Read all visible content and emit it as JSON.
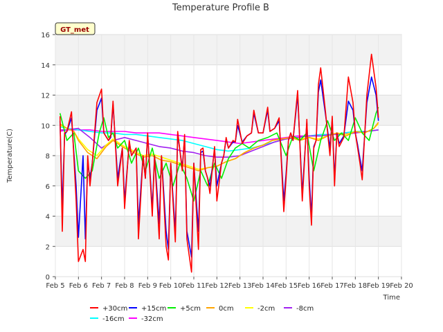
{
  "chart_data": {
    "type": "line",
    "title": "Temperature Profile B",
    "xlabel": "Time",
    "ylabel": "Temperature(C)",
    "badge": "GT_met",
    "grid": true,
    "legend_position": "bottom",
    "xlim": [
      5,
      20
    ],
    "ylim": [
      0,
      16
    ],
    "x_ticks": [
      5,
      6,
      7,
      8,
      9,
      10,
      11,
      12,
      13,
      14,
      15,
      16,
      17,
      18,
      19,
      20
    ],
    "x_tick_labels": [
      "Feb 5",
      "Feb 6",
      "Feb 7",
      "Feb 8",
      "Feb 9",
      "Feb 10",
      "Feb 11",
      "Feb 12",
      "Feb 13",
      "Feb 14",
      "Feb 15",
      "Feb 16",
      "Feb 17",
      "Feb 18",
      "Feb 19",
      "Feb 20"
    ],
    "y_ticks": [
      0,
      2,
      4,
      6,
      8,
      10,
      12,
      14,
      16
    ],
    "y_tick_labels": [
      "0",
      "2",
      "4",
      "6",
      "8",
      "10",
      "12",
      "14",
      "16"
    ],
    "series": [
      {
        "name": "+30cm",
        "color": "#ff0000",
        "x": [
          5.2,
          5.3,
          5.4,
          5.5,
          5.7,
          5.9,
          6.0,
          6.2,
          6.3,
          6.4,
          6.5,
          6.6,
          6.8,
          7.0,
          7.1,
          7.3,
          7.4,
          7.5,
          7.7,
          7.9,
          8.0,
          8.2,
          8.3,
          8.5,
          8.6,
          8.8,
          8.9,
          9.0,
          9.2,
          9.3,
          9.5,
          9.6,
          9.8,
          9.9,
          10.0,
          10.2,
          10.3,
          10.5,
          10.6,
          10.7,
          10.9,
          11.0,
          11.2,
          11.3,
          11.4,
          11.5,
          11.6,
          11.7,
          11.9,
          12.0,
          12.2,
          12.3,
          12.4,
          12.5,
          12.7,
          12.8,
          12.9,
          13.1,
          13.3,
          13.5,
          13.6,
          13.8,
          14.0,
          14.2,
          14.3,
          14.5,
          14.7,
          14.9,
          15.0,
          15.1,
          15.2,
          15.3,
          15.5,
          15.7,
          15.9,
          16.0,
          16.1,
          16.2,
          16.3,
          16.4,
          16.5,
          16.7,
          16.9,
          17.0,
          17.1,
          17.2,
          17.3,
          17.5,
          17.7,
          17.9,
          18.0,
          18.1,
          18.2,
          18.3,
          18.5,
          18.7,
          18.9,
          19.0
        ],
        "y": [
          10.6,
          3.0,
          9.5,
          9.6,
          10.9,
          5.0,
          1.0,
          1.8,
          1.0,
          8.0,
          6.0,
          7.5,
          11.5,
          12.4,
          9.5,
          9.0,
          9.3,
          11.6,
          6.0,
          8.5,
          4.5,
          9.0,
          8.0,
          8.5,
          2.5,
          8.0,
          6.5,
          9.5,
          4.0,
          8.0,
          2.5,
          8.0,
          2.0,
          1.1,
          7.5,
          2.3,
          9.6,
          7.0,
          9.4,
          2.5,
          0.3,
          7.5,
          1.8,
          8.4,
          8.5,
          7.0,
          6.5,
          5.5,
          8.6,
          5.0,
          7.5,
          8.0,
          9.2,
          8.5,
          9.0,
          8.9,
          10.4,
          8.8,
          9.3,
          9.5,
          11.0,
          9.5,
          9.5,
          11.2,
          9.6,
          9.8,
          10.5,
          4.3,
          6.5,
          9.0,
          9.5,
          9.0,
          12.3,
          5.0,
          10.4,
          6.0,
          3.4,
          8.5,
          9.0,
          12.7,
          13.8,
          11.0,
          8.0,
          10.6,
          6.0,
          9.5,
          8.6,
          9.2,
          13.2,
          11.5,
          9.5,
          8.5,
          7.5,
          6.4,
          12.0,
          14.7,
          12.5,
          10.5
        ]
      },
      {
        "name": "+15cm",
        "color": "#0000ff",
        "x": [
          5.2,
          5.3,
          5.4,
          5.5,
          5.7,
          5.9,
          6.0,
          6.2,
          6.3,
          6.4,
          6.5,
          6.6,
          6.8,
          7.0,
          7.1,
          7.3,
          7.4,
          7.5,
          7.7,
          7.9,
          8.0,
          8.2,
          8.3,
          8.5,
          8.6,
          8.8,
          8.9,
          9.0,
          9.2,
          9.3,
          9.5,
          9.6,
          9.8,
          9.9,
          10.0,
          10.2,
          10.3,
          10.5,
          10.6,
          10.7,
          10.9,
          11.0,
          11.2,
          11.3,
          11.4,
          11.5,
          11.6,
          11.7,
          11.9,
          12.0,
          12.2,
          12.3,
          12.4,
          12.5,
          12.7,
          12.8,
          12.9,
          13.1,
          13.3,
          13.5,
          13.6,
          13.8,
          14.0,
          14.2,
          14.3,
          14.5,
          14.7,
          14.9,
          15.0,
          15.1,
          15.2,
          15.3,
          15.5,
          15.7,
          15.9,
          16.0,
          16.1,
          16.2,
          16.3,
          16.4,
          16.5,
          16.7,
          16.9,
          17.0,
          17.1,
          17.2,
          17.3,
          17.5,
          17.7,
          17.9,
          18.0,
          18.1,
          18.2,
          18.3,
          18.5,
          18.7,
          18.9,
          19.0
        ],
        "y": [
          10.3,
          4.5,
          9.4,
          9.6,
          10.5,
          6.0,
          2.6,
          8.0,
          2.5,
          7.5,
          6.5,
          7.5,
          11.0,
          11.8,
          9.5,
          9.0,
          9.2,
          11.4,
          6.5,
          8.5,
          5.0,
          8.8,
          8.0,
          8.5,
          3.5,
          8.0,
          6.5,
          9.4,
          4.5,
          8.0,
          3.5,
          8.0,
          3.0,
          1.8,
          7.5,
          3.0,
          9.4,
          7.2,
          9.2,
          3.0,
          1.3,
          7.5,
          3.0,
          8.2,
          8.3,
          7.0,
          6.5,
          6.0,
          8.4,
          6.0,
          7.5,
          8.0,
          9.1,
          8.5,
          8.9,
          8.9,
          10.0,
          8.9,
          9.3,
          9.5,
          10.8,
          9.5,
          9.5,
          11.0,
          9.6,
          9.8,
          10.3,
          5.0,
          6.8,
          9.0,
          9.5,
          9.0,
          12.0,
          5.5,
          10.2,
          6.5,
          4.0,
          8.6,
          9.0,
          12.2,
          13.0,
          10.8,
          8.5,
          10.4,
          6.5,
          9.5,
          8.8,
          9.3,
          11.6,
          11.0,
          9.5,
          8.7,
          7.8,
          7.0,
          11.5,
          13.2,
          12.0,
          10.3
        ]
      },
      {
        "name": "+5cm",
        "color": "#00ee00",
        "x": [
          5.2,
          5.5,
          5.8,
          6.0,
          6.3,
          6.6,
          6.9,
          7.1,
          7.3,
          7.5,
          7.7,
          8.0,
          8.3,
          8.6,
          8.9,
          9.2,
          9.5,
          9.8,
          10.1,
          10.4,
          10.7,
          11.0,
          11.3,
          11.6,
          11.9,
          12.2,
          12.5,
          12.8,
          13.1,
          13.4,
          13.8,
          14.2,
          14.6,
          15.0,
          15.3,
          15.6,
          15.9,
          16.2,
          16.5,
          16.8,
          17.1,
          17.4,
          17.7,
          18.0,
          18.3,
          18.6,
          18.9,
          19.0
        ],
        "y": [
          10.8,
          9.0,
          9.5,
          7.0,
          6.5,
          7.0,
          9.5,
          10.5,
          9.2,
          9.5,
          8.5,
          9.0,
          7.5,
          8.5,
          7.0,
          8.5,
          6.5,
          7.5,
          6.0,
          7.5,
          6.5,
          5.0,
          7.0,
          6.0,
          7.5,
          6.5,
          7.8,
          8.5,
          8.8,
          8.5,
          9.0,
          9.2,
          9.5,
          8.0,
          9.3,
          9.0,
          9.5,
          7.0,
          9.0,
          10.3,
          9.0,
          9.5,
          9.0,
          10.5,
          9.5,
          9.0,
          10.8,
          11.2
        ]
      },
      {
        "name": "0cm",
        "color": "#ffa500",
        "x": [
          5.2,
          5.5,
          5.8,
          6.0,
          6.4,
          6.8,
          7.2,
          7.5,
          8.0,
          8.4,
          8.8,
          9.2,
          9.6,
          10.0,
          10.4,
          10.8,
          11.2,
          11.6,
          12.0,
          12.4,
          12.8,
          13.2,
          13.6,
          14.0,
          14.4,
          14.8,
          15.2,
          15.6,
          16.0,
          16.4,
          16.8,
          17.2,
          17.6,
          18.0,
          18.4,
          18.8,
          19.0
        ],
        "y": [
          10.1,
          9.8,
          9.6,
          9.0,
          8.2,
          7.8,
          8.6,
          9.0,
          8.5,
          8.2,
          7.9,
          8.0,
          7.7,
          7.6,
          7.4,
          7.2,
          7.0,
          7.2,
          7.3,
          7.6,
          7.8,
          8.2,
          8.5,
          8.7,
          9.0,
          9.1,
          9.2,
          9.0,
          9.2,
          9.0,
          9.3,
          9.5,
          9.3,
          9.6,
          9.5,
          9.8,
          10.2
        ]
      },
      {
        "name": "-2cm",
        "color": "#ffff00",
        "x": [
          5.2,
          5.5,
          5.8,
          6.0,
          6.4,
          6.8,
          7.2,
          7.5,
          8.0,
          8.4,
          8.8,
          9.2,
          9.6,
          10.0,
          10.4,
          10.8,
          11.2,
          11.6,
          12.0,
          12.4,
          12.8,
          13.2,
          13.6,
          14.0,
          14.4,
          14.8,
          15.2,
          15.6,
          16.0,
          16.4,
          16.8,
          17.2,
          17.6,
          18.0,
          18.4,
          18.8,
          19.0
        ],
        "y": [
          10.0,
          9.8,
          9.6,
          9.1,
          8.4,
          8.0,
          8.7,
          9.1,
          8.6,
          8.3,
          8.0,
          8.1,
          7.9,
          7.7,
          7.5,
          7.3,
          7.1,
          7.2,
          7.3,
          7.6,
          7.8,
          8.2,
          8.5,
          8.7,
          9.0,
          9.1,
          9.2,
          9.1,
          9.2,
          9.1,
          9.3,
          9.5,
          9.4,
          9.6,
          9.5,
          9.8,
          10.1
        ]
      },
      {
        "name": "-8cm",
        "color": "#a020f0",
        "x": [
          5.2,
          5.5,
          6.0,
          6.5,
          7.0,
          7.5,
          8.0,
          8.5,
          9.0,
          9.5,
          10.0,
          10.5,
          11.0,
          11.5,
          12.0,
          12.5,
          13.0,
          13.5,
          14.0,
          14.5,
          15.0,
          15.5,
          16.0,
          16.5,
          17.0,
          17.5,
          18.0,
          18.5,
          19.0
        ],
        "y": [
          9.7,
          9.7,
          9.8,
          9.2,
          8.5,
          9.0,
          9.2,
          9.0,
          8.8,
          8.6,
          8.5,
          8.3,
          8.2,
          8.0,
          7.9,
          7.9,
          8.0,
          8.3,
          8.6,
          8.9,
          9.1,
          9.2,
          9.3,
          9.3,
          9.4,
          9.4,
          9.5,
          9.6,
          9.7
        ]
      },
      {
        "name": "-16cm",
        "color": "#00ffff",
        "x": [
          5.2,
          5.5,
          6.0,
          6.5,
          7.0,
          7.5,
          8.0,
          8.5,
          9.0,
          9.5,
          10.0,
          10.5,
          11.0,
          11.5,
          12.0,
          12.5,
          13.0,
          13.5,
          14.0,
          14.5,
          15.0,
          15.5,
          16.0,
          16.5,
          17.0,
          17.5,
          18.0,
          18.5,
          19.0
        ],
        "y": [
          9.9,
          9.8,
          9.7,
          9.6,
          9.5,
          9.5,
          9.4,
          9.4,
          9.3,
          9.2,
          9.1,
          9.0,
          8.8,
          8.6,
          8.4,
          8.3,
          8.4,
          8.5,
          8.7,
          8.9,
          9.1,
          9.2,
          9.3,
          9.4,
          9.4,
          9.5,
          9.6,
          9.6,
          9.7
        ]
      },
      {
        "name": "-32cm",
        "color": "#ff00ff",
        "x": [
          5.2,
          5.5,
          6.0,
          6.5,
          7.0,
          7.5,
          8.0,
          8.5,
          9.0,
          9.5,
          10.0,
          10.5,
          11.0,
          11.5,
          12.0,
          12.5,
          13.0,
          13.5,
          14.0,
          14.5,
          15.0,
          15.5,
          16.0,
          16.5,
          17.0,
          17.5,
          18.0,
          18.5,
          19.0
        ],
        "y": [
          9.6,
          9.7,
          9.7,
          9.7,
          9.6,
          9.6,
          9.6,
          9.5,
          9.5,
          9.5,
          9.4,
          9.3,
          9.2,
          9.1,
          9.0,
          8.9,
          8.8,
          8.9,
          9.0,
          9.1,
          9.2,
          9.3,
          9.3,
          9.4,
          9.4,
          9.5,
          9.5,
          9.6,
          9.7
        ]
      }
    ]
  }
}
